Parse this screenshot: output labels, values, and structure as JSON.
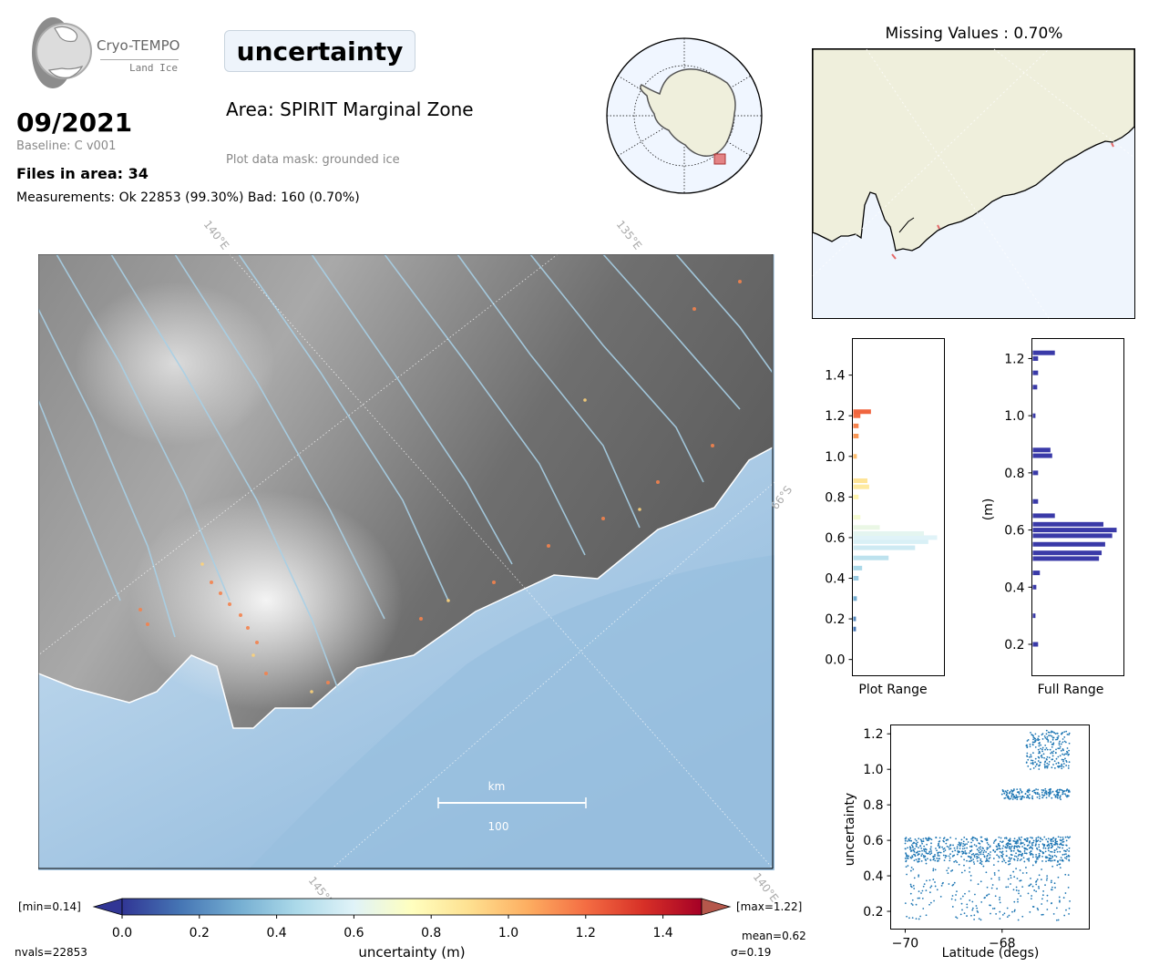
{
  "logo": {
    "name": "Cryo-TEMPO",
    "product": "Land Ice"
  },
  "parameter": "uncertainty",
  "date": "09/2021",
  "baseline": "Baseline: C v001",
  "files": "Files in area: 34",
  "measurements": "Measurements: Ok 22853 (99.30%) Bad: 160 (0.70%)",
  "area": "Area: SPIRIT Marginal Zone",
  "mask": "Plot data mask: grounded ice",
  "missing": "Missing Values : 0.70%",
  "map": {
    "graticule": [
      "140°E",
      "135°E",
      "66°S",
      "145°E",
      "140°E"
    ],
    "scale_unit": "km",
    "scale_value": "100"
  },
  "colorbar": {
    "min_label": "[min=0.14]",
    "max_label": "[max=1.22]",
    "ticks": [
      "0.0",
      "0.2",
      "0.4",
      "0.6",
      "0.8",
      "1.0",
      "1.2",
      "1.4"
    ],
    "label": "uncertainty (m)",
    "mean": "mean=0.62",
    "sigma": "σ=0.19",
    "nvals": "nvals=22853",
    "colors": [
      "#313695",
      "#4575b4",
      "#74add1",
      "#abd9e9",
      "#e0f3f8",
      "#ffffbf",
      "#fee090",
      "#fdae61",
      "#f46d43",
      "#d73027",
      "#a50026"
    ]
  },
  "hist_plot": {
    "label": "Plot Range",
    "ticks": [
      "0.0",
      "0.2",
      "0.4",
      "0.6",
      "0.8",
      "1.0",
      "1.2",
      "1.4"
    ]
  },
  "hist_full": {
    "label": "Full Range",
    "ylabel": "(m)",
    "ticks": [
      "0.2",
      "0.4",
      "0.6",
      "0.8",
      "1.0",
      "1.2"
    ],
    "color": "#3a3aa8"
  },
  "scatter": {
    "xlabel": "Latitude (degs)",
    "ylabel": "uncertainty",
    "xticks": [
      "−70",
      "−68"
    ],
    "yticks": [
      "0.2",
      "0.4",
      "0.6",
      "0.8",
      "1.0",
      "1.2"
    ],
    "color": "#1f77b4"
  },
  "chart_data": [
    {
      "type": "bar",
      "title": "Plot Range",
      "orientation": "horizontal",
      "categories": [
        0.15,
        0.2,
        0.3,
        0.4,
        0.45,
        0.5,
        0.55,
        0.58,
        0.6,
        0.62,
        0.65,
        0.7,
        0.8,
        0.85,
        0.88,
        1.0,
        1.1,
        1.15,
        1.2,
        1.22
      ],
      "values": [
        3,
        3,
        4,
        6,
        10,
        40,
        70,
        85,
        95,
        80,
        30,
        8,
        6,
        18,
        16,
        4,
        6,
        6,
        8,
        20
      ],
      "ylim": [
        -0.08,
        1.58
      ]
    },
    {
      "type": "bar",
      "title": "Full Range",
      "orientation": "horizontal",
      "categories": [
        0.2,
        0.3,
        0.4,
        0.45,
        0.5,
        0.52,
        0.55,
        0.58,
        0.6,
        0.62,
        0.65,
        0.7,
        0.8,
        0.86,
        0.88,
        1.0,
        1.1,
        1.15,
        1.2,
        1.22
      ],
      "values": [
        6,
        3,
        4,
        8,
        75,
        78,
        82,
        90,
        95,
        80,
        25,
        6,
        6,
        22,
        20,
        3,
        5,
        6,
        6,
        25
      ],
      "ylim": [
        0.09,
        1.27
      ]
    },
    {
      "type": "scatter",
      "xlabel": "Latitude (degs)",
      "ylabel": "uncertainty",
      "xlim": [
        -70.3,
        -66.2
      ],
      "ylim": [
        0.1,
        1.25
      ],
      "clusters": [
        {
          "x": [
            -70.0,
            -66.6
          ],
          "y": [
            0.48,
            0.62
          ]
        },
        {
          "x": [
            -68.0,
            -66.6
          ],
          "y": [
            0.83,
            0.89
          ]
        },
        {
          "x": [
            -67.5,
            -66.6
          ],
          "y": [
            1.0,
            1.22
          ]
        },
        {
          "x": [
            -70.0,
            -66.6
          ],
          "y": [
            0.15,
            0.48
          ]
        }
      ]
    }
  ]
}
